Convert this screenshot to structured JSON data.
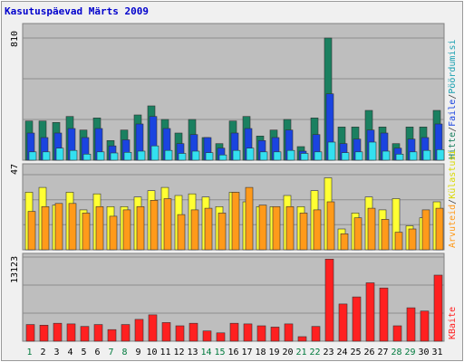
{
  "colors": {
    "page": "#ffffff",
    "frame": "#f0f0f0",
    "panel": "#bebebe",
    "gridline": "#8e8e8e",
    "title": "#0000cc",
    "day_weekday": "#000000",
    "day_weekend": "#007a3d",
    "hits": "#1a8060",
    "files": "#1a44e0",
    "pages": "#33e0f0",
    "visits": "#ffff33",
    "sites": "#ff9a1a",
    "kbytes": "#ff2020"
  },
  "chart_data": {
    "type": "bar",
    "title": "Kasutuspäevad Märts 2009",
    "categories": [
      "1",
      "2",
      "3",
      "4",
      "5",
      "6",
      "7",
      "8",
      "9",
      "10",
      "11",
      "12",
      "13",
      "14",
      "15",
      "16",
      "17",
      "18",
      "19",
      "20",
      "21",
      "22",
      "23",
      "24",
      "25",
      "26",
      "27",
      "28",
      "29",
      "30",
      "31"
    ],
    "weekend_days": [
      "1",
      "7",
      "8",
      "14",
      "15",
      "21",
      "22",
      "28",
      "29"
    ],
    "panels": [
      {
        "id": "hits",
        "ymax": 810,
        "ymax_label": "810",
        "legend": [
          "Hitte",
          "Faile",
          "Pöördumisi"
        ],
        "series": [
          {
            "name": "Hitte",
            "values": [
              260,
              260,
              250,
              290,
              200,
              280,
              130,
              200,
              300,
              360,
              270,
              180,
              270,
              150,
              110,
              260,
              290,
              160,
              200,
              270,
              90,
              280,
              810,
              220,
              220,
              330,
              220,
              110,
              220,
              220,
              330
            ]
          },
          {
            "name": "Faile",
            "values": [
              180,
              150,
              180,
              210,
              150,
              210,
              95,
              135,
              240,
              290,
              210,
              110,
              170,
              150,
              80,
              180,
              210,
              130,
              150,
              200,
              60,
              170,
              440,
              110,
              140,
              200,
              180,
              80,
              140,
              150,
              240
            ]
          },
          {
            "name": "Pöördumisi",
            "values": [
              55,
              55,
              80,
              65,
              40,
              55,
              48,
              52,
              60,
              95,
              65,
              45,
              60,
              50,
              35,
              65,
              80,
              55,
              55,
              65,
              45,
              55,
              120,
              50,
              55,
              120,
              60,
              40,
              55,
              65,
              70
            ]
          }
        ]
      },
      {
        "id": "visits",
        "ymax": 47,
        "ymax_label": "47",
        "legend": [
          "Külastusi",
          "Arvuteid"
        ],
        "series": [
          {
            "name": "Külastusi",
            "values": [
              36,
              39,
              28,
              36,
              25,
              35,
              27,
              27,
              33,
              37,
              39,
              34,
              35,
              33,
              27,
              36,
              30,
              27,
              27,
              34,
              27,
              37,
              45,
              13,
              23,
              33,
              25,
              32,
              15,
              20,
              30
            ]
          },
          {
            "name": "Arvuteid",
            "values": [
              24,
              27,
              29,
              29,
              23,
              27,
              21,
              25,
              27,
              31,
              32,
              22,
              25,
              26,
              23,
              36,
              39,
              28,
              27,
              27,
              23,
              25,
              30,
              10,
              20,
              26,
              19,
              11,
              13,
              25,
              26
            ]
          }
        ]
      },
      {
        "id": "kbytes",
        "ymax": 13123,
        "ymax_label": "13123",
        "legend": [
          "KBaite"
        ],
        "series": [
          {
            "name": "KBaite",
            "values": [
              2600,
              2500,
              2800,
              2700,
              2300,
              2600,
              1800,
              2600,
              3400,
              4100,
              2900,
              2400,
              2800,
              1600,
              1300,
              2800,
              2700,
              2400,
              2200,
              2700,
              700,
              2300,
              12800,
              5800,
              6900,
              9100,
              8300,
              2400,
              5200,
              4700,
              10300
            ]
          }
        ]
      }
    ]
  }
}
